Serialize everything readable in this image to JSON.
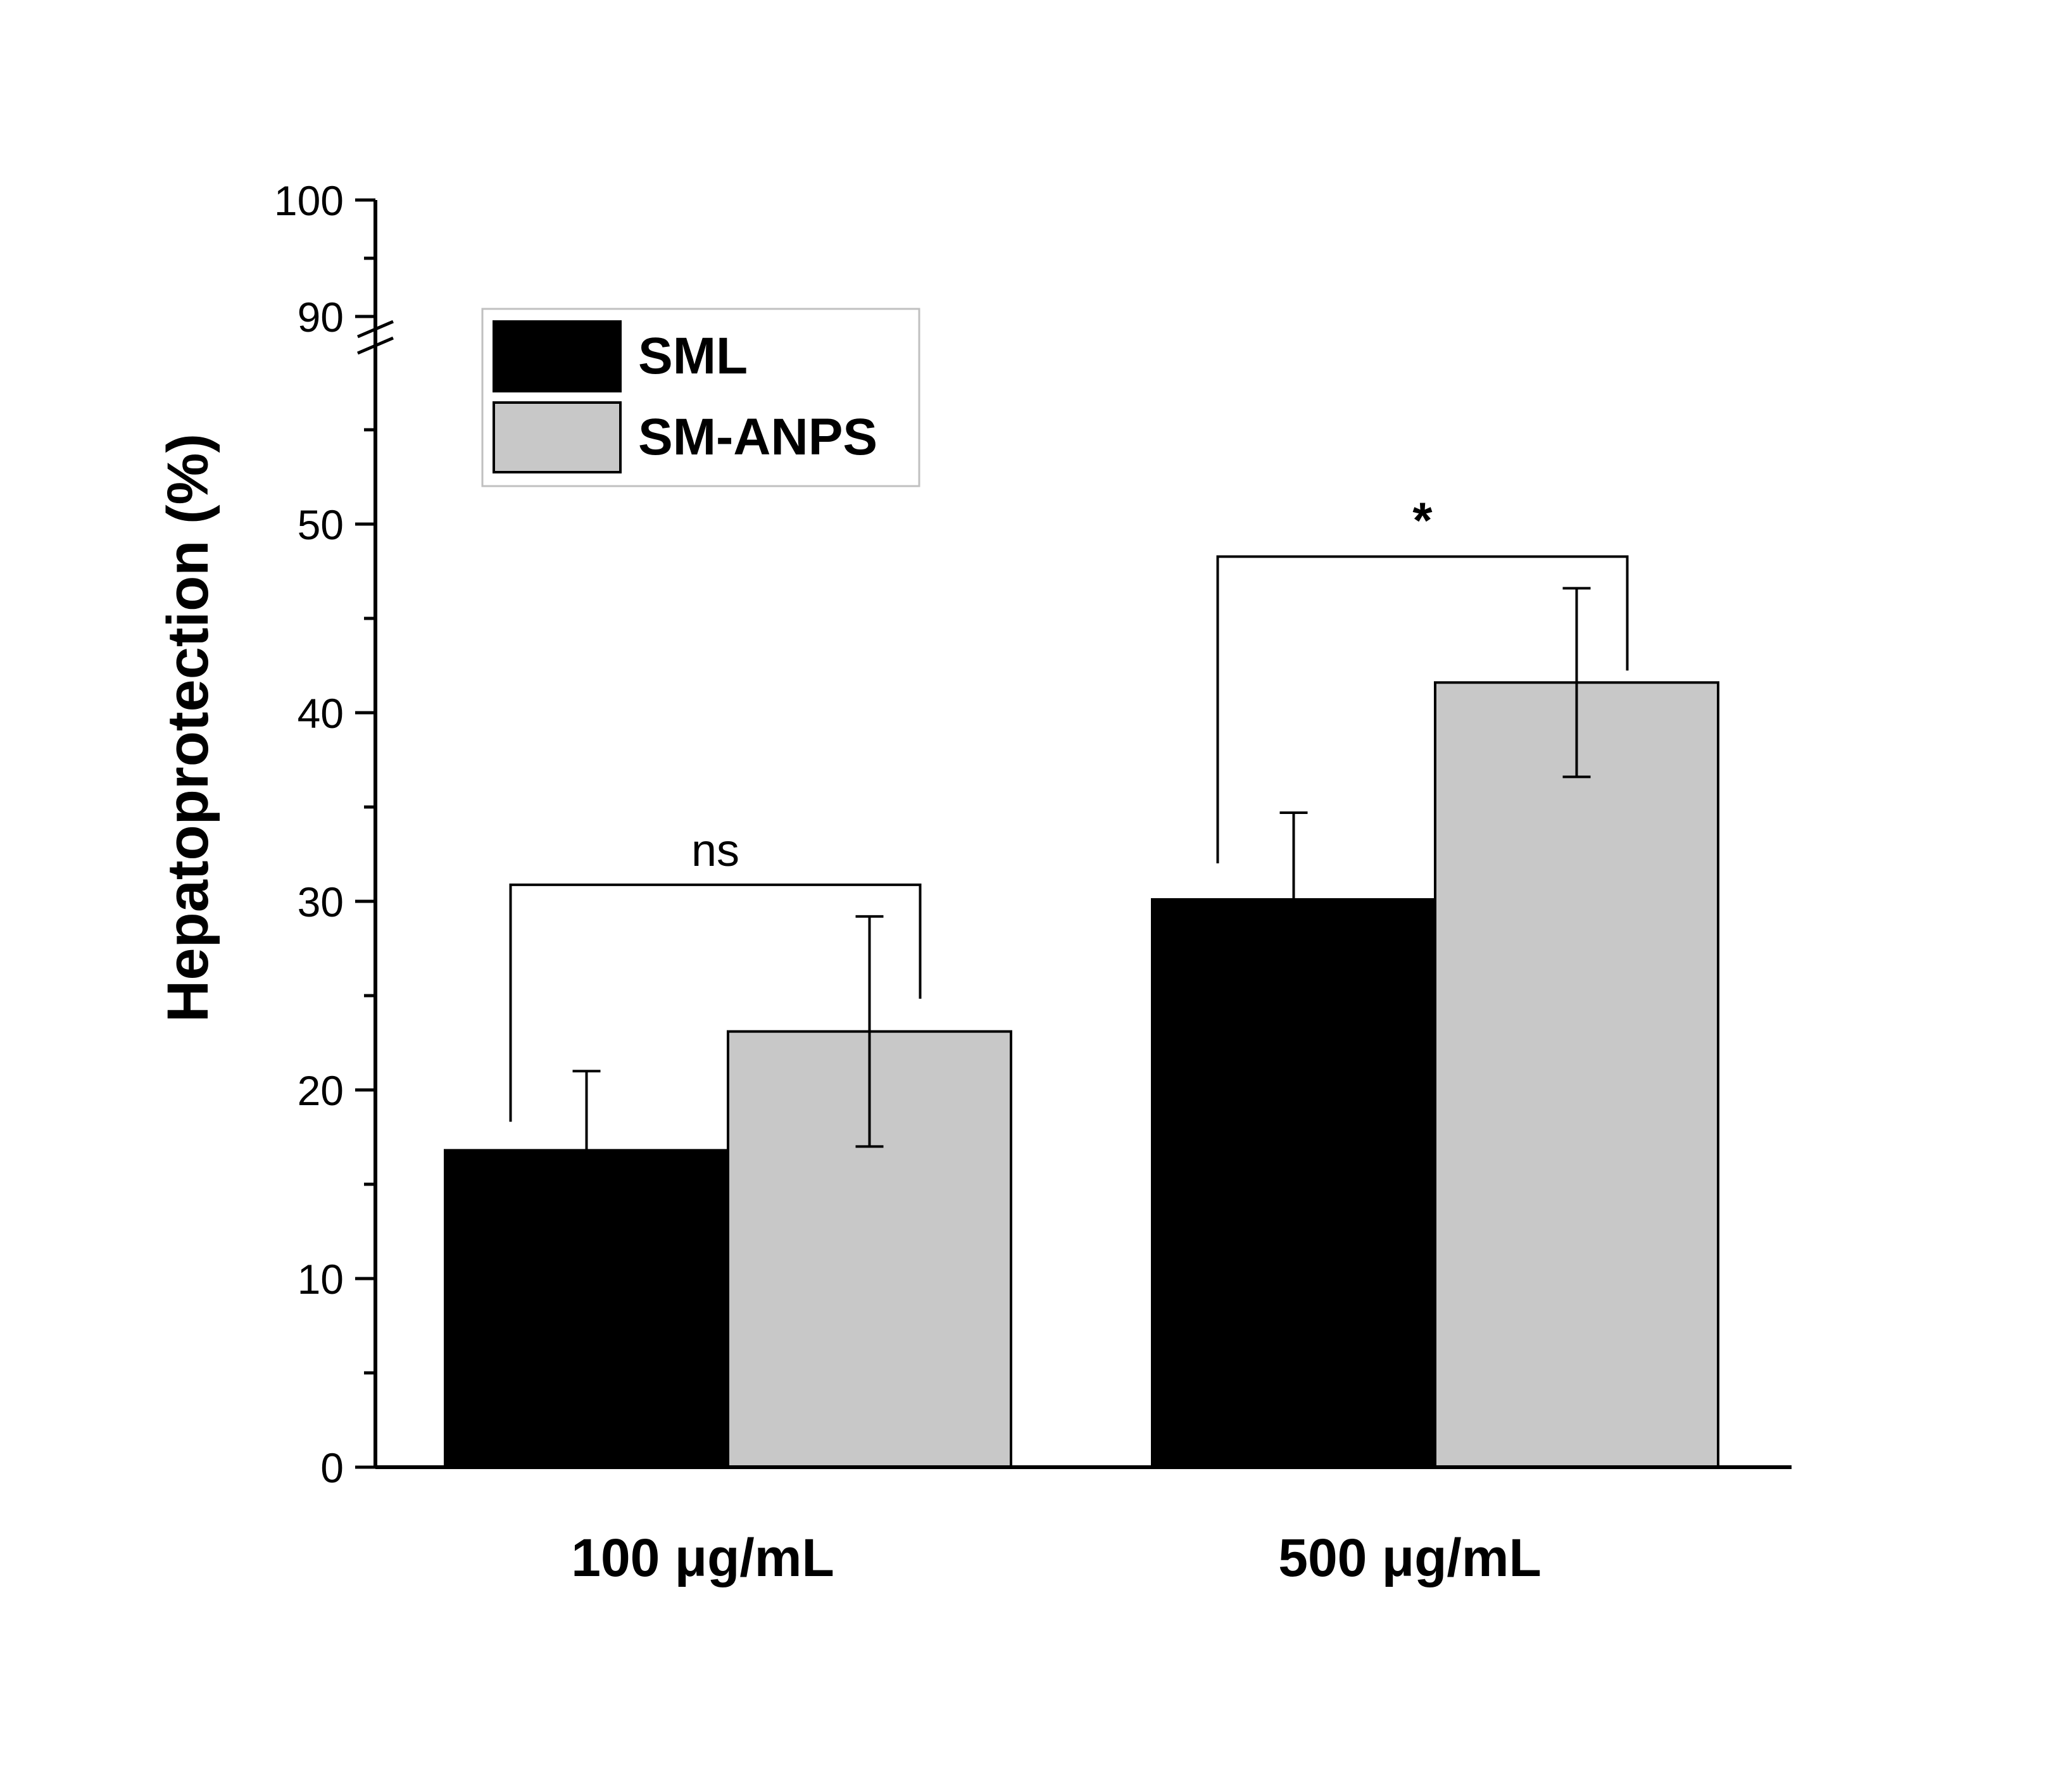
{
  "chart_data": {
    "type": "bar",
    "title": "",
    "xlabel": "",
    "ylabel": "Hepatoprotection (%)",
    "categories": [
      "100 μg/mL",
      "500 μg/mL"
    ],
    "series": [
      {
        "name": "SML",
        "color": "#000000",
        "values": [
          16.8,
          30.1
        ],
        "errors": [
          4.2,
          4.6
        ]
      },
      {
        "name": "SM-ANPS",
        "color": "#c8c8c8",
        "values": [
          23.1,
          41.6
        ],
        "errors": [
          6.1,
          5.0
        ]
      }
    ],
    "ylim": [
      0,
      100
    ],
    "axis_break": [
      60,
      90
    ],
    "yticks_lower": [
      "0",
      "10",
      "20",
      "30",
      "40",
      "50"
    ],
    "yticks_upper": [
      "90",
      "100"
    ],
    "legend_position": "top-left",
    "grid": false,
    "annotations": [
      {
        "category_index": 0,
        "text": "ns"
      },
      {
        "category_index": 1,
        "text": "*"
      }
    ]
  }
}
